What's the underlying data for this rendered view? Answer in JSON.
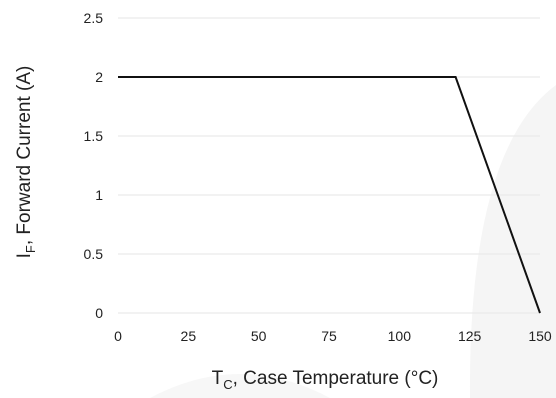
{
  "chart_data": {
    "type": "line",
    "xlabel": {
      "main": "T",
      "sub": "C",
      "rest": ", Case Temperature  (°C)"
    },
    "ylabel": {
      "main": "I",
      "sub": "F",
      "rest": ", Forward Current (A)"
    },
    "xlim": [
      0,
      150
    ],
    "ylim": [
      0,
      2.5
    ],
    "x_ticks": [
      "0",
      "25",
      "50",
      "75",
      "100",
      "125",
      "150"
    ],
    "y_ticks": [
      "0",
      "0.5",
      "1",
      "1.5",
      "2",
      "2.5"
    ],
    "grid": true,
    "series": [
      {
        "x": [
          0,
          120,
          150
        ],
        "y": [
          2,
          2,
          0
        ]
      }
    ],
    "colors": {
      "line": "#111111",
      "grid": "#e6e6e6",
      "watermark": "#f5f5f5"
    }
  }
}
